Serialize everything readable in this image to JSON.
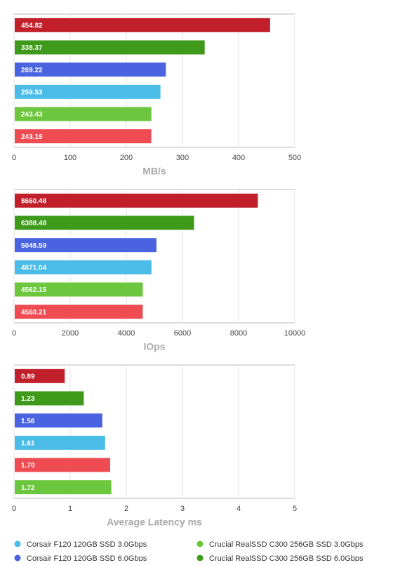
{
  "chart_data": [
    {
      "type": "bar",
      "orientation": "horizontal",
      "xlabel": "MB/s",
      "values": [
        454.82,
        338.37,
        269.22,
        259.53,
        243.43,
        243.19
      ],
      "colors": [
        "#c1202b",
        "#3f9a1c",
        "#4a63e0",
        "#4bbbe8",
        "#6cc63e",
        "#ee4b52"
      ],
      "xlim": [
        0,
        500
      ],
      "xticks": [
        0,
        100,
        200,
        300,
        400,
        500
      ],
      "grid": true
    },
    {
      "type": "bar",
      "orientation": "horizontal",
      "xlabel": "IOps",
      "values": [
        8660.48,
        6388.48,
        5048.59,
        4871.04,
        4562.15,
        4560.21
      ],
      "colors": [
        "#c1202b",
        "#3f9a1c",
        "#4a63e0",
        "#4bbbe8",
        "#6cc63e",
        "#ee4b52"
      ],
      "xlim": [
        0,
        10000
      ],
      "xticks": [
        0,
        2000,
        4000,
        6000,
        8000,
        10000
      ],
      "grid": true
    },
    {
      "type": "bar",
      "orientation": "horizontal",
      "xlabel": "Average Latency ms",
      "values": [
        0.89,
        1.23,
        1.56,
        1.61,
        1.7,
        1.72
      ],
      "value_labels": [
        "0.89",
        "1.23",
        "1.56",
        "1.61",
        "1.70",
        "1.72"
      ],
      "colors": [
        "#c1202b",
        "#3f9a1c",
        "#4a63e0",
        "#4bbbe8",
        "#ee4b52",
        "#6cc63e"
      ],
      "xlim": [
        0,
        5
      ],
      "xticks": [
        0,
        1,
        2,
        3,
        4,
        5
      ],
      "grid": true
    }
  ],
  "legend": [
    {
      "name": "Corsair F120 120GB SSD 3.0Gbps",
      "color": "#4bbbe8"
    },
    {
      "name": "Corsair F120 120GB SSD 6.0Gbps",
      "color": "#4a63e0"
    },
    {
      "name": "Crucial RealSSD C300 256GB SSD 3.0Gbps",
      "color": "#6cc63e"
    },
    {
      "name": "Crucial RealSSD C300 256GB SSD 6.0Gbps",
      "color": "#3f9a1c"
    }
  ]
}
